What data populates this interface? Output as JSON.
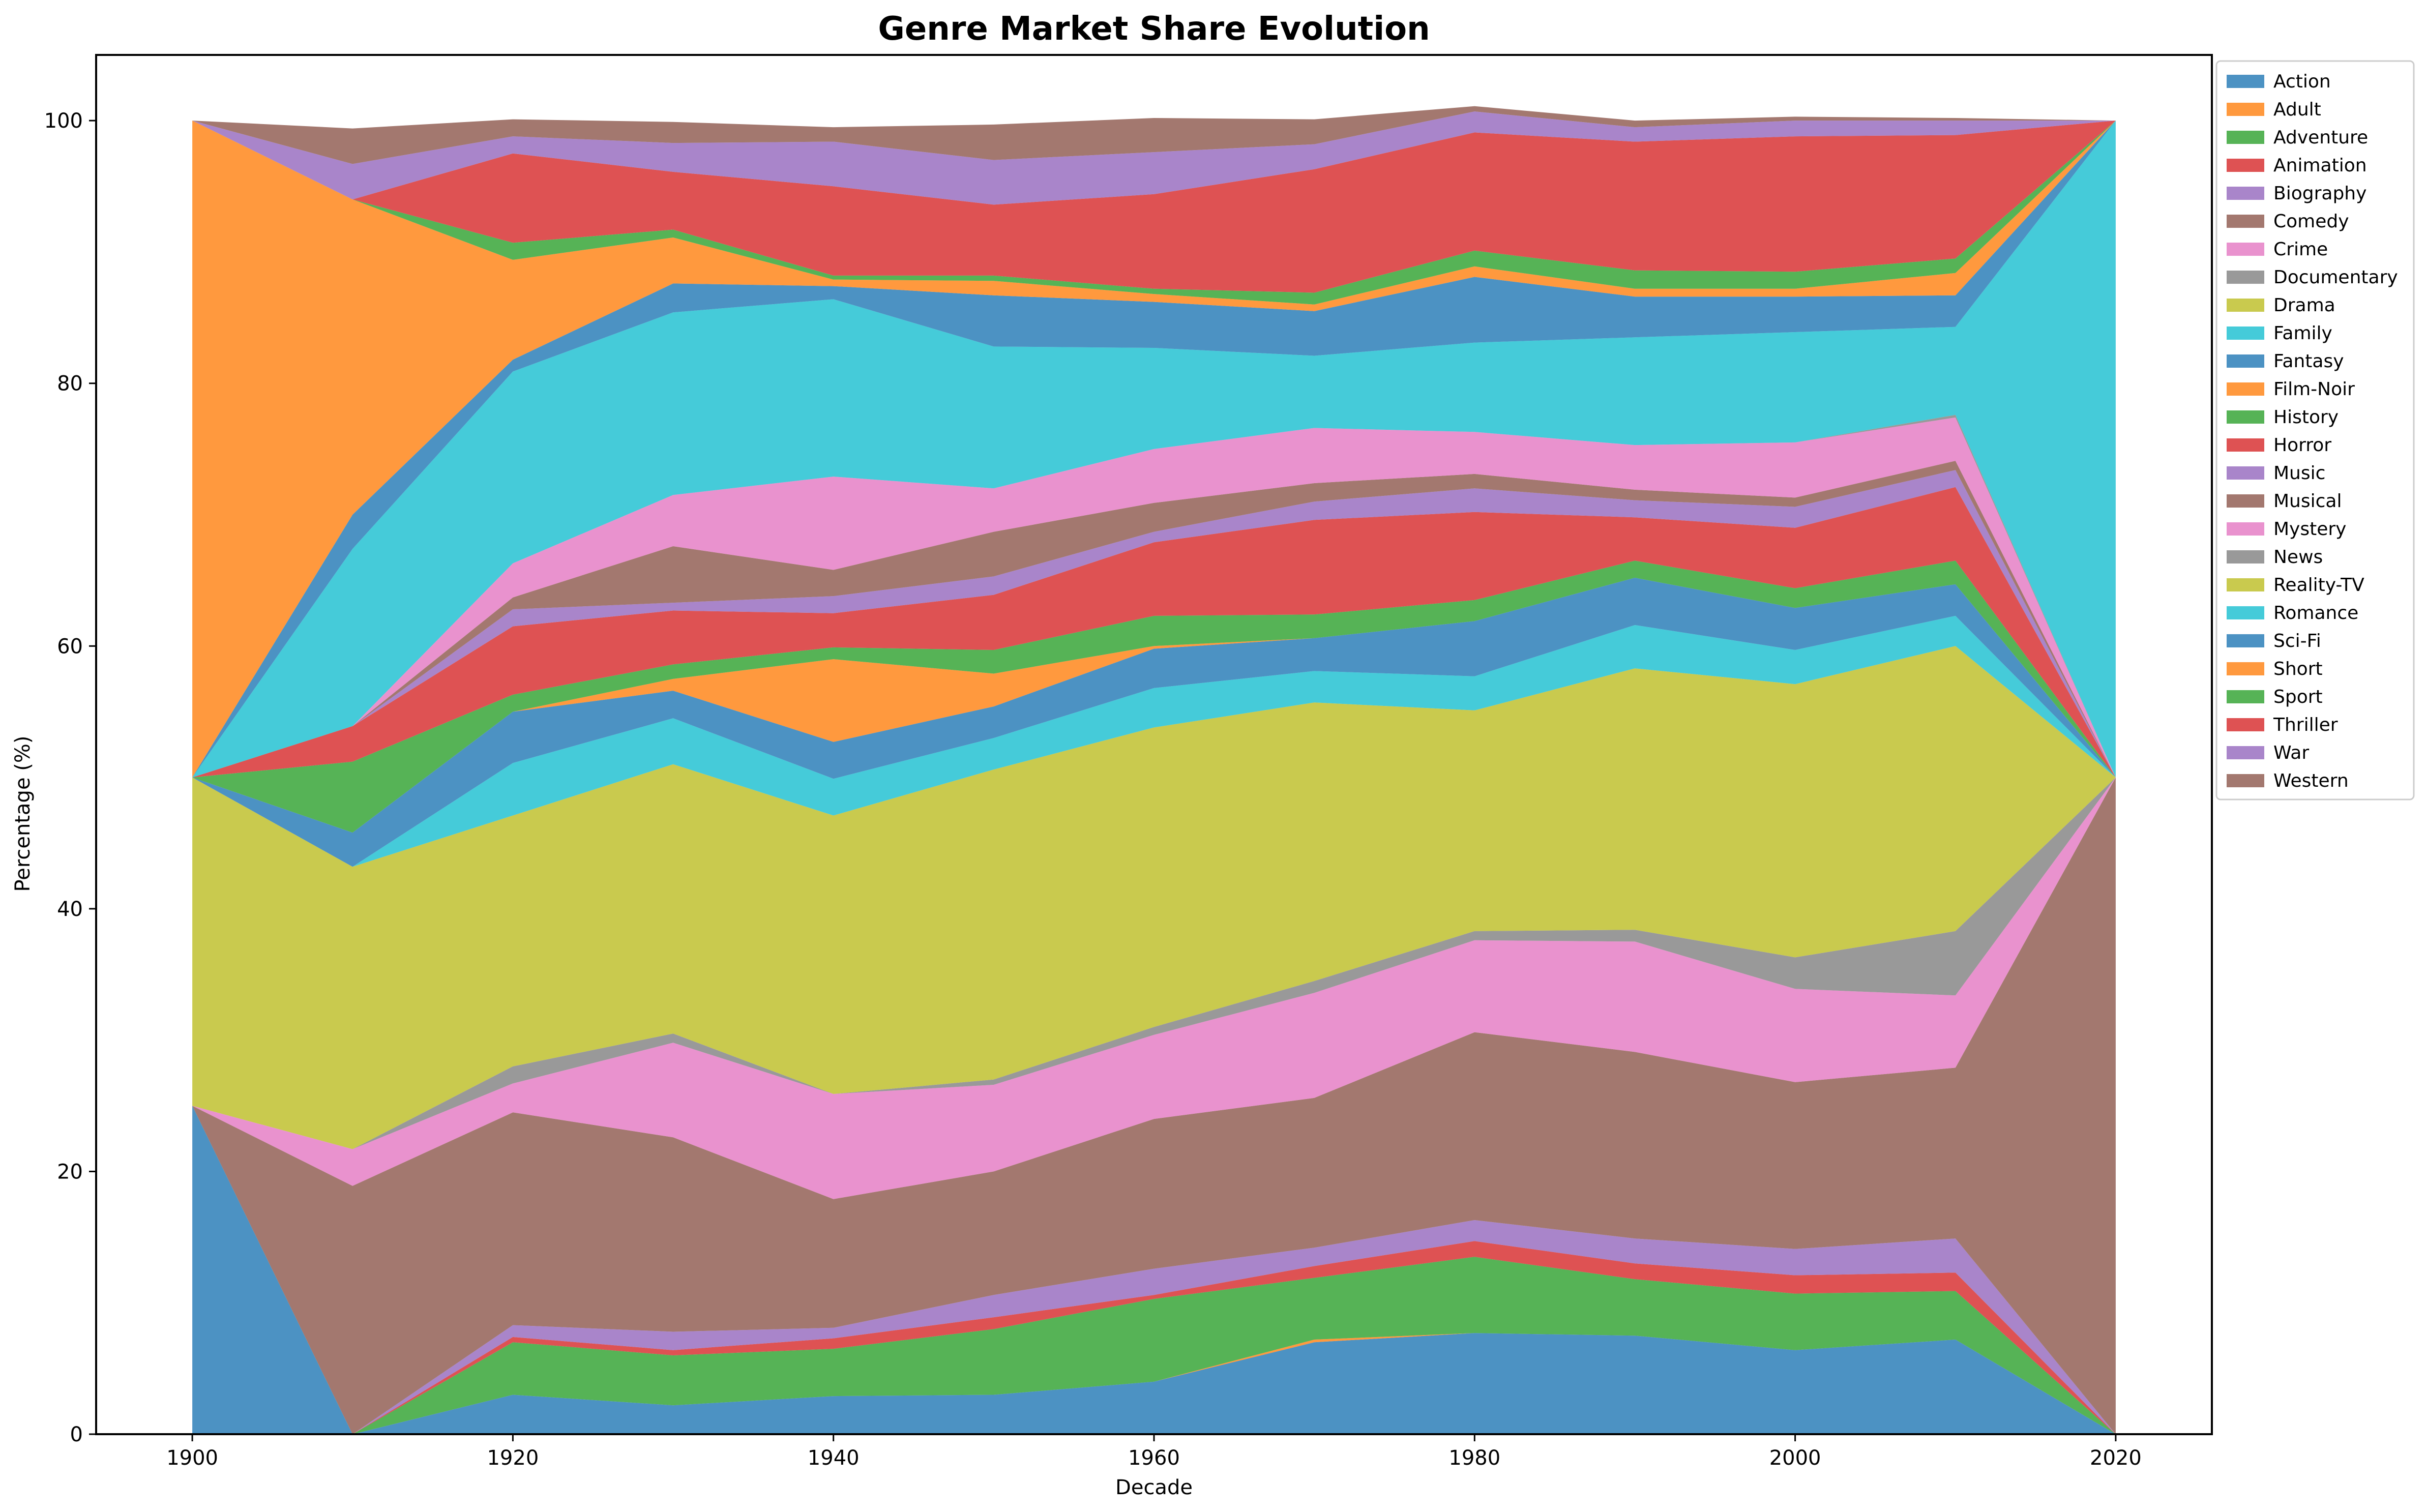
{
  "chart_data": {
    "type": "area",
    "stacked": true,
    "title": "Genre Market Share Evolution",
    "xlabel": "Decade",
    "ylabel": "Percentage (%)",
    "xlim": [
      1894,
      2026
    ],
    "ylim": [
      0,
      105
    ],
    "x": [
      1900,
      1910,
      1920,
      1930,
      1940,
      1950,
      1960,
      1970,
      1980,
      1990,
      2000,
      2010,
      2020
    ],
    "xticks": [
      1900,
      1920,
      1940,
      1960,
      1980,
      2000,
      2020
    ],
    "yticks": [
      0,
      20,
      40,
      60,
      80,
      100
    ],
    "grid": false,
    "legend_position": "outside-right",
    "series": [
      {
        "name": "Action",
        "color": "#1f77b4",
        "values": [
          25,
          0,
          3,
          2.2,
          2.9,
          3,
          4,
          7,
          7.7,
          7.5,
          6.4,
          7.2,
          0
        ]
      },
      {
        "name": "Adult",
        "color": "#ff7f0e",
        "values": [
          0,
          0,
          0,
          0,
          0,
          0,
          0,
          0.2,
          0,
          0,
          0,
          0,
          0
        ]
      },
      {
        "name": "Adventure",
        "color": "#2ca02c",
        "values": [
          0,
          0,
          4,
          3.8,
          3.6,
          5,
          6.3,
          4.7,
          5.8,
          4.3,
          4.3,
          3.7,
          0
        ]
      },
      {
        "name": "Animation",
        "color": "#d62728",
        "values": [
          0,
          0,
          0.4,
          0.4,
          0.8,
          0.9,
          0.3,
          0.9,
          1.2,
          1.2,
          1.4,
          1.4,
          0
        ]
      },
      {
        "name": "Biography",
        "color": "#9467bd",
        "values": [
          0,
          0,
          0.9,
          1.4,
          0.8,
          1.7,
          2,
          1.4,
          1.6,
          1.9,
          2,
          2.6,
          0
        ]
      },
      {
        "name": "Comedy",
        "color": "#8c564b",
        "values": [
          0,
          18.9,
          16.2,
          14.8,
          9.8,
          9.4,
          11.4,
          11.4,
          14.3,
          14.2,
          12.7,
          13,
          50
        ]
      },
      {
        "name": "Crime",
        "color": "#e377c2",
        "values": [
          0,
          2.8,
          2.2,
          7.2,
          8,
          6.6,
          6.4,
          8,
          7,
          8.4,
          7.1,
          5.5,
          0
        ]
      },
      {
        "name": "Documentary",
        "color": "#7f7f7f",
        "values": [
          0,
          0,
          1.3,
          0.7,
          0,
          0.4,
          0.6,
          0.9,
          0.7,
          0.9,
          2.4,
          4.9,
          0
        ]
      },
      {
        "name": "Drama",
        "color": "#bcbd22",
        "values": [
          25,
          21.5,
          19.1,
          20.5,
          21.2,
          23.6,
          22.8,
          21.2,
          16.8,
          19.9,
          20.8,
          21.7,
          0
        ]
      },
      {
        "name": "Family",
        "color": "#17becf",
        "values": [
          0,
          0,
          4,
          3.5,
          2.8,
          2.4,
          3,
          2.4,
          2.6,
          3.3,
          2.6,
          2.3,
          0
        ]
      },
      {
        "name": "Fantasy",
        "color": "#1f77b4",
        "values": [
          0,
          2.6,
          3.9,
          2.1,
          2.8,
          2.4,
          3,
          2.5,
          4.2,
          3.6,
          3.2,
          2.4,
          0
        ]
      },
      {
        "name": "Film-Noir",
        "color": "#ff7f0e",
        "values": [
          0,
          0,
          0,
          0.9,
          6.3,
          2.5,
          0.2,
          0,
          0,
          0,
          0,
          0,
          0
        ]
      },
      {
        "name": "History",
        "color": "#2ca02c",
        "values": [
          0,
          5.4,
          1.3,
          1.1,
          0.9,
          1.8,
          2.3,
          1.8,
          1.6,
          1.3,
          1.5,
          1.8,
          0
        ]
      },
      {
        "name": "Horror",
        "color": "#d62728",
        "values": [
          0,
          2.7,
          5.2,
          4.1,
          2.6,
          4.2,
          5.6,
          7.2,
          6.7,
          3.3,
          4.6,
          5.6,
          0
        ]
      },
      {
        "name": "Music",
        "color": "#9467bd",
        "values": [
          0,
          0,
          1.3,
          0.6,
          1.3,
          1.4,
          0.8,
          1.4,
          1.8,
          1.3,
          1.6,
          1.3,
          0
        ]
      },
      {
        "name": "Musical",
        "color": "#8c564b",
        "values": [
          0,
          0,
          0.9,
          4.3,
          2,
          3.4,
          2.2,
          1.4,
          1.1,
          0.8,
          0.7,
          0.7,
          0
        ]
      },
      {
        "name": "Mystery",
        "color": "#e377c2",
        "values": [
          0,
          0,
          2.6,
          3.9,
          7.1,
          3.3,
          4.1,
          4.2,
          3.2,
          3.4,
          4.2,
          3.3,
          0
        ]
      },
      {
        "name": "News",
        "color": "#7f7f7f",
        "values": [
          0,
          0,
          0,
          0,
          0,
          0,
          0,
          0,
          0,
          0,
          0,
          0.2,
          0
        ]
      },
      {
        "name": "Reality-TV",
        "color": "#bcbd22",
        "values": [
          0,
          0,
          0,
          0,
          0,
          0,
          0,
          0,
          0,
          0,
          0,
          0,
          0
        ]
      },
      {
        "name": "Romance",
        "color": "#17becf",
        "values": [
          0,
          13.5,
          14.6,
          13.9,
          13.5,
          10.8,
          7.7,
          5.5,
          6.8,
          8.2,
          8.4,
          6.7,
          50
        ]
      },
      {
        "name": "Sci-Fi",
        "color": "#1f77b4",
        "values": [
          0,
          2.6,
          0.9,
          2.2,
          1,
          3.9,
          3.5,
          3.4,
          5,
          3.1,
          2.7,
          2.4,
          0
        ]
      },
      {
        "name": "Short",
        "color": "#ff7f0e",
        "values": [
          50,
          24,
          7.6,
          3.5,
          0.5,
          1.1,
          0.6,
          0.5,
          0.8,
          0.6,
          0.6,
          1.7,
          0
        ]
      },
      {
        "name": "Sport",
        "color": "#2ca02c",
        "values": [
          0,
          0,
          1.3,
          0.6,
          0.3,
          0.4,
          0.4,
          0.9,
          1.2,
          1.4,
          1.3,
          1.1,
          0
        ]
      },
      {
        "name": "Thriller",
        "color": "#d62728",
        "values": [
          0,
          0,
          6.8,
          4.4,
          6.8,
          5.4,
          7.2,
          9.4,
          9,
          9.8,
          10.3,
          9.4,
          0
        ]
      },
      {
        "name": "War",
        "color": "#9467bd",
        "values": [
          0,
          2.7,
          1.3,
          2.2,
          3.4,
          3.4,
          3.2,
          1.9,
          1.6,
          1.1,
          1.2,
          1.1,
          0
        ]
      },
      {
        "name": "Western",
        "color": "#8c564b",
        "values": [
          0,
          2.7,
          1.3,
          1.6,
          1.1,
          2.7,
          2.6,
          1.9,
          0.4,
          0.5,
          0.3,
          0.2,
          0
        ]
      }
    ]
  }
}
